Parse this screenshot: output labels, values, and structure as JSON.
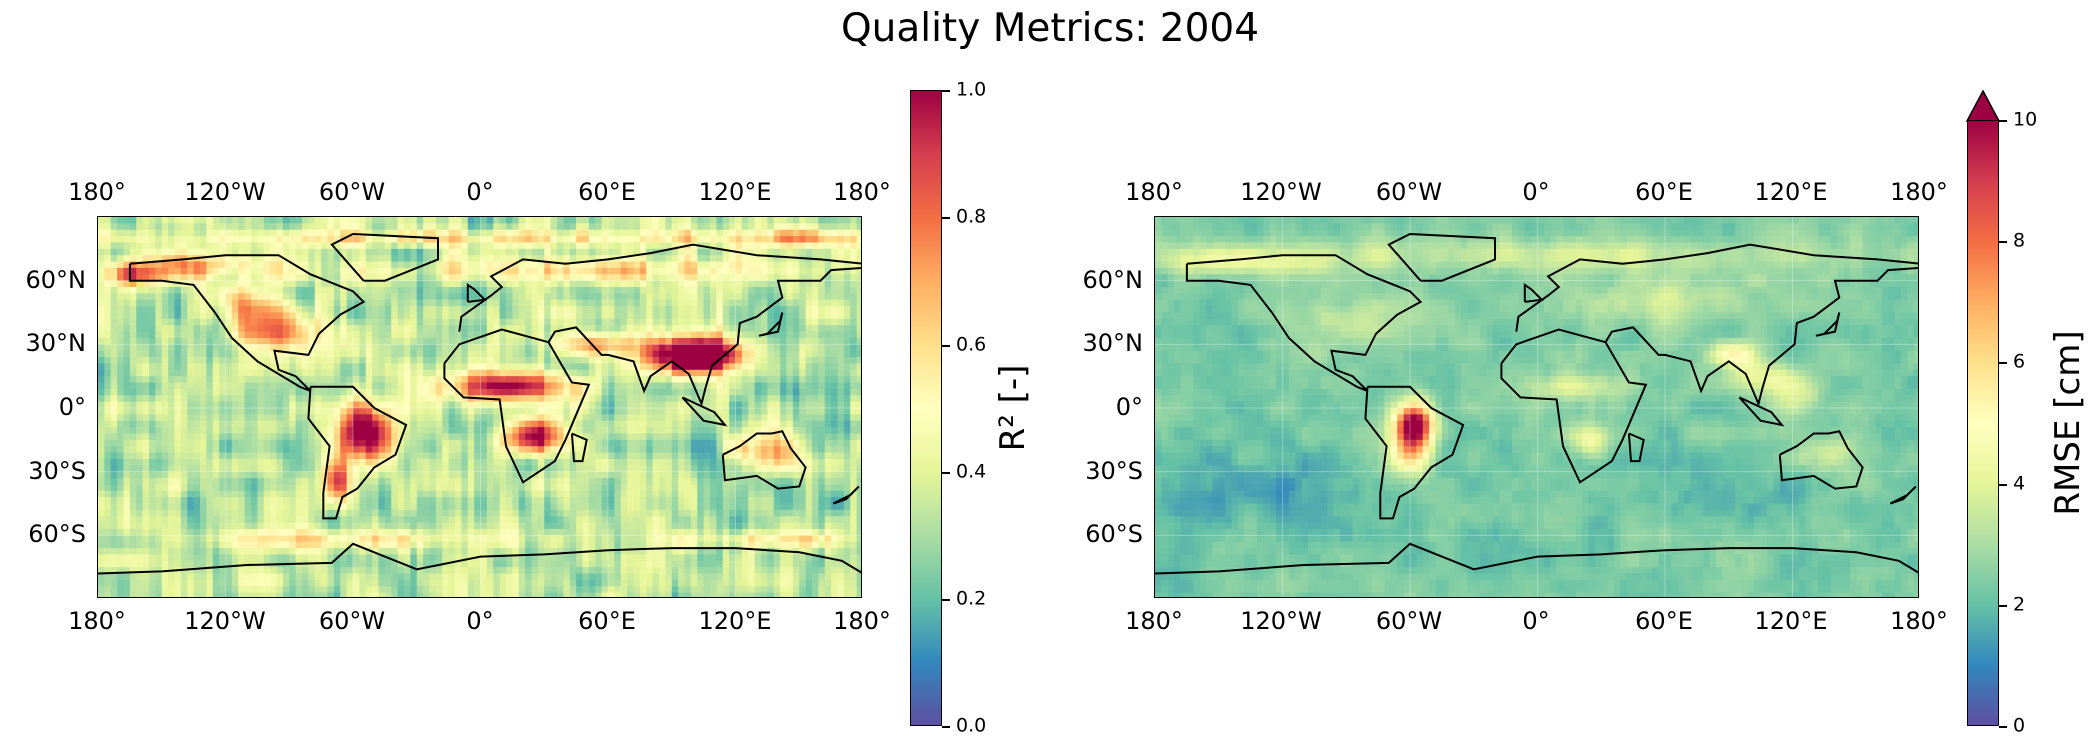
{
  "title": "Quality Metrics: 2004",
  "colormap": [
    "#5e4fa2",
    "#3288bd",
    "#66c2a5",
    "#abdda4",
    "#e6f598",
    "#ffffbf",
    "#fee08b",
    "#fdae61",
    "#f46d43",
    "#d53e4f",
    "#9e0142"
  ],
  "lon_labels": [
    "180°",
    "120°W",
    "60°W",
    "0°",
    "60°E",
    "120°E",
    "180°"
  ],
  "lat_labels": [
    "60°N",
    "30°N",
    "0°",
    "30°S",
    "60°S"
  ],
  "panels": [
    {
      "name": "r2",
      "colorbar": {
        "label": "R² [-]",
        "ticks": [
          "0.0",
          "0.2",
          "0.4",
          "0.6",
          "0.8",
          "1.0"
        ],
        "extend_max": false
      },
      "field": "r2"
    },
    {
      "name": "rmse",
      "colorbar": {
        "label": "RMSE [cm]",
        "ticks": [
          "0",
          "2",
          "4",
          "6",
          "8",
          "10"
        ],
        "extend_max": true
      },
      "field": "rmse"
    }
  ]
}
